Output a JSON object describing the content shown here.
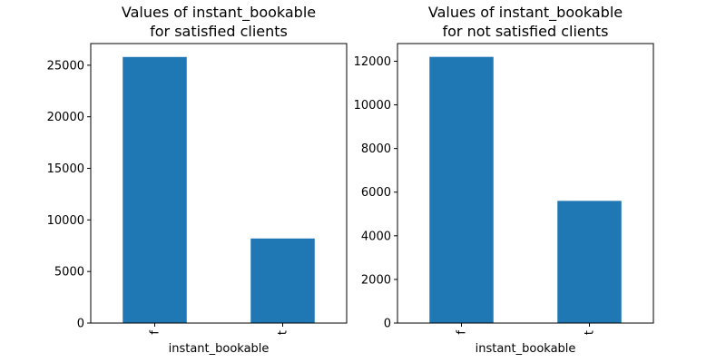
{
  "chart_data": [
    {
      "type": "bar",
      "title": "Values of instant_bookable\nfor satisfied clients",
      "categories": [
        "f",
        "t"
      ],
      "values": [
        25800,
        8200
      ],
      "xlabel": "instant_bookable",
      "ylabel": "",
      "ylim": [
        0,
        27100
      ],
      "yticks": [
        0,
        5000,
        10000,
        15000,
        20000,
        25000
      ],
      "grid": false,
      "color": "#1f77b4"
    },
    {
      "type": "bar",
      "title": "Values of instant_bookable\nfor not satisfied clients",
      "categories": [
        "f",
        "t"
      ],
      "values": [
        12200,
        5600
      ],
      "xlabel": "instant_bookable",
      "ylabel": "",
      "ylim": [
        0,
        12810
      ],
      "yticks": [
        0,
        2000,
        4000,
        6000,
        8000,
        10000,
        12000
      ],
      "grid": false,
      "color": "#1f77b4"
    }
  ]
}
